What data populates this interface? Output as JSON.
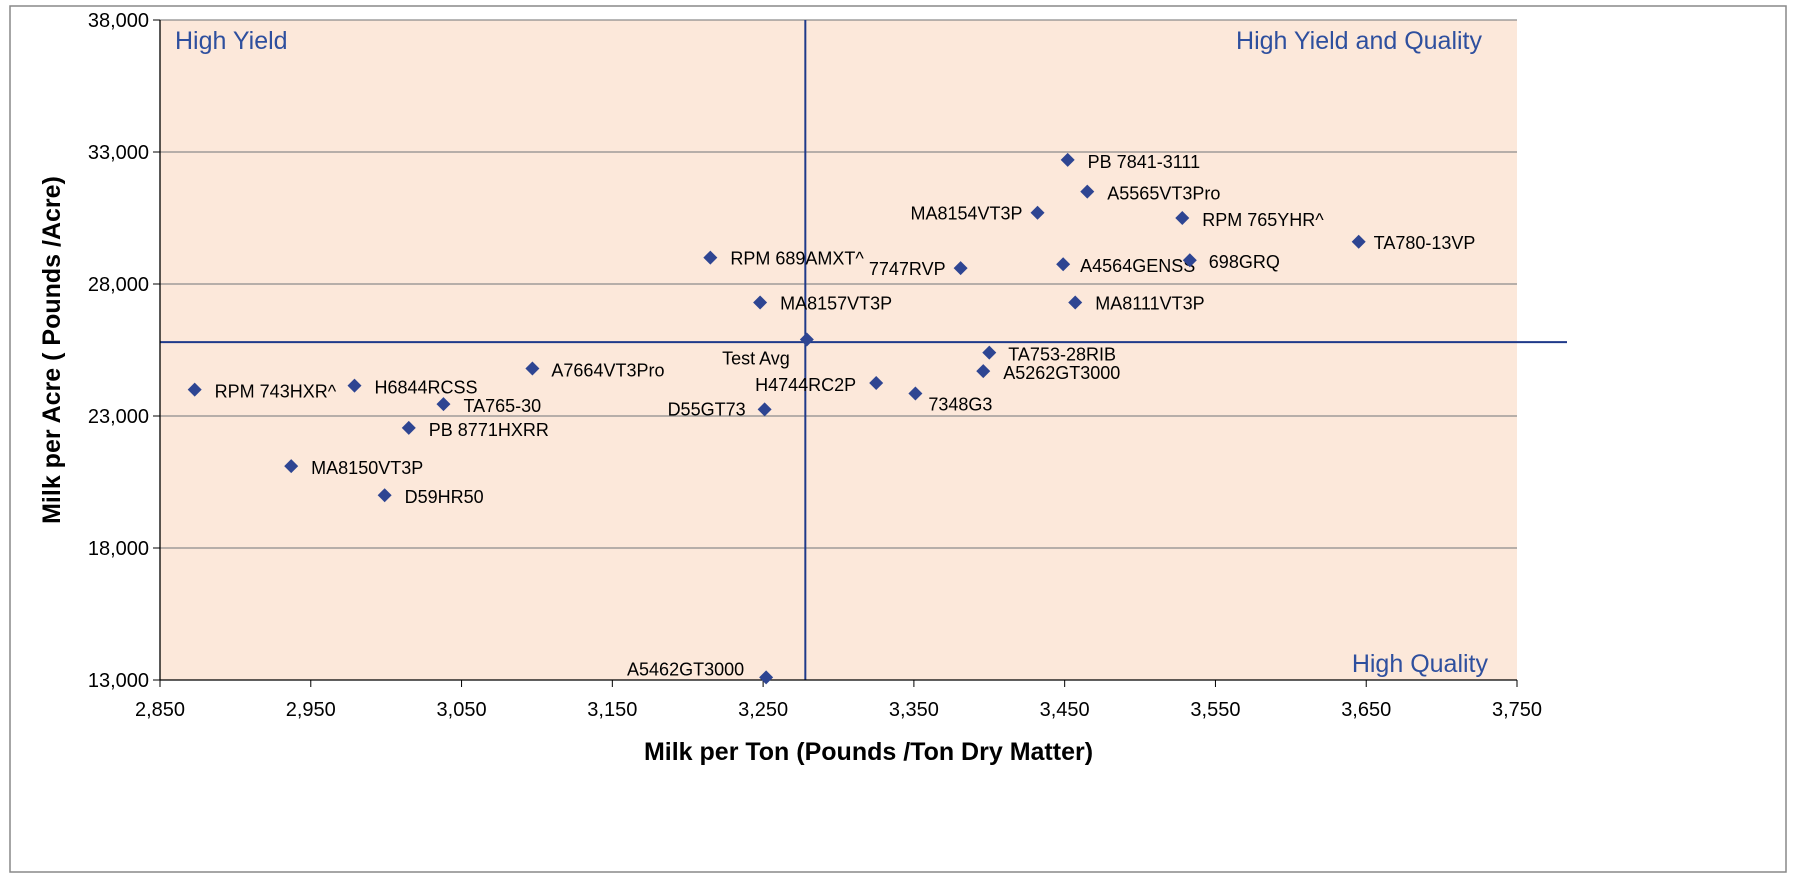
{
  "chart_data": {
    "type": "scatter",
    "title": "",
    "xlabel": "Milk per Ton (Pounds /Ton Dry Matter)",
    "ylabel": "Milk per Acre ( Pounds /Acre)",
    "xlim": [
      2850,
      3750
    ],
    "ylim": [
      13000,
      38000
    ],
    "x_ticks": [
      "2,850",
      "2,950",
      "3,050",
      "3,150",
      "3,250",
      "3,350",
      "3,450",
      "3,550",
      "3,650",
      "3,750"
    ],
    "y_ticks": [
      "13,000",
      "18,000",
      "23,000",
      "28,000",
      "33,000",
      "38,000"
    ],
    "grid": "horizontal",
    "reference_lines": {
      "x": 3278,
      "y": 25800
    },
    "quadrant_labels": {
      "top_left": "High Yield",
      "top_right": "High Yield and Quality",
      "bottom_right": "High Quality"
    },
    "colors": {
      "plot_background": "#fce8da",
      "marker": "#2e4592",
      "reference_line": "#1f3a8a",
      "quadrant_text": "#2e4f9e",
      "gridline": "#8c8c8c"
    },
    "points": [
      {
        "label": "PB 7841-3111",
        "x": 3452,
        "y": 32700
      },
      {
        "label": "A5565VT3Pro",
        "x": 3465,
        "y": 31500
      },
      {
        "label": "MA8154VT3P",
        "x": 3432,
        "y": 30700
      },
      {
        "label": "RPM 765YHR^",
        "x": 3528,
        "y": 30500
      },
      {
        "label": "TA780-13VP",
        "x": 3645,
        "y": 29600
      },
      {
        "label": "RPM 689AMXT^",
        "x": 3215,
        "y": 29000
      },
      {
        "label": "7747RVP",
        "x": 3381,
        "y": 28600
      },
      {
        "label": "A4564GENSS",
        "x": 3449,
        "y": 28750
      },
      {
        "label": "698GRQ",
        "x": 3533,
        "y": 28900
      },
      {
        "label": "MA8157VT3P",
        "x": 3248,
        "y": 27300
      },
      {
        "label": "MA8111VT3P",
        "x": 3457,
        "y": 27300
      },
      {
        "label": "Test Avg",
        "x": 3279,
        "y": 25900
      },
      {
        "label": "TA753-28RIB",
        "x": 3400,
        "y": 25400
      },
      {
        "label": "A5262GT3000",
        "x": 3396,
        "y": 24700
      },
      {
        "label": "A7664VT3Pro",
        "x": 3097,
        "y": 24800
      },
      {
        "label": "H4744RC2P",
        "x": 3325,
        "y": 24250
      },
      {
        "label": "RPM 743HXR^",
        "x": 2873,
        "y": 24000
      },
      {
        "label": "H6844RCSS",
        "x": 2979,
        "y": 24150
      },
      {
        "label": "7348G3",
        "x": 3351,
        "y": 23850
      },
      {
        "label": "TA765-30",
        "x": 3038,
        "y": 23450
      },
      {
        "label": "D55GT73",
        "x": 3251,
        "y": 23250
      },
      {
        "label": "PB 8771HXRR",
        "x": 3015,
        "y": 22550
      },
      {
        "label": "MA8150VT3P",
        "x": 2937,
        "y": 21100
      },
      {
        "label": "D59HR50",
        "x": 2999,
        "y": 20000
      },
      {
        "label": "A5462GT3000",
        "x": 3252,
        "y": 13100
      }
    ]
  }
}
